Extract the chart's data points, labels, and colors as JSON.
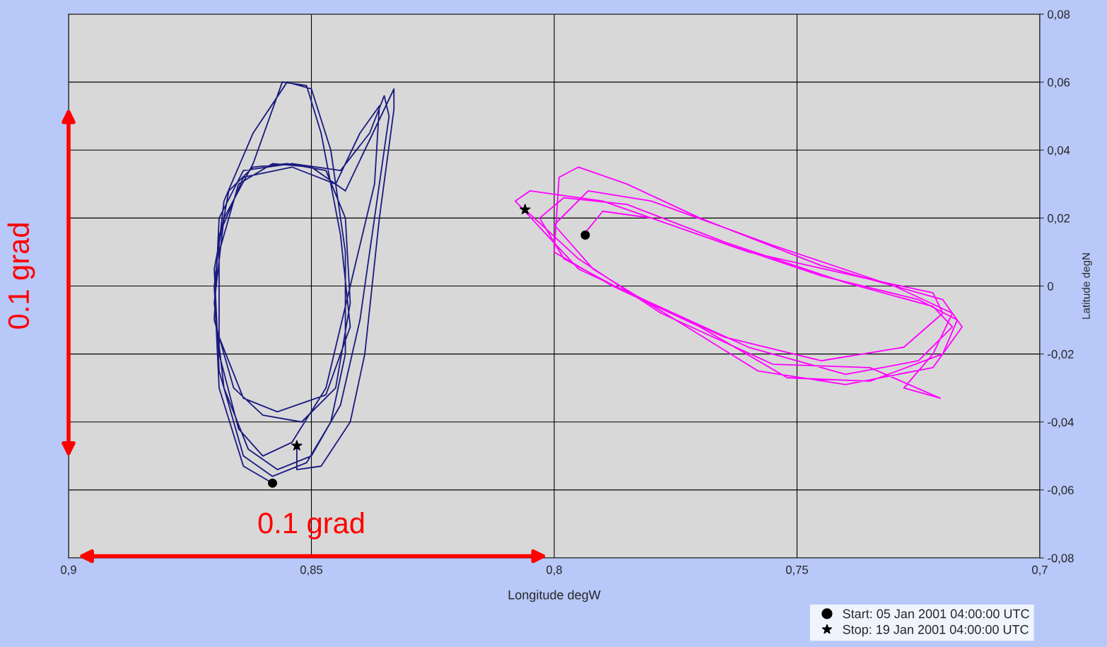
{
  "chart_data": {
    "type": "line",
    "xlabel": "Longitude degW",
    "ylabel": "Latitude degN",
    "xlim": [
      0.9,
      0.7
    ],
    "xticks": [
      {
        "value": 0.9,
        "label": "0,9"
      },
      {
        "value": 0.85,
        "label": "0,85"
      },
      {
        "value": 0.8,
        "label": "0,8"
      },
      {
        "value": 0.75,
        "label": "0,75"
      },
      {
        "value": 0.7,
        "label": "0,7"
      }
    ],
    "ylim": [
      -0.08,
      0.08
    ],
    "yticks": [
      {
        "value": -0.08,
        "label": "-0,08"
      },
      {
        "value": -0.06,
        "label": "-0,06"
      },
      {
        "value": -0.04,
        "label": "-0,04"
      },
      {
        "value": -0.02,
        "label": "-0,02"
      },
      0,
      {
        "value": 0.02,
        "label": "0,02"
      },
      {
        "value": 0.04,
        "label": "0,04"
      },
      {
        "value": 0.06,
        "label": "0,06"
      },
      {
        "value": 0.08,
        "label": "0,08"
      }
    ],
    "grid": true,
    "legend": "bottom right",
    "annotations": [
      "0.1 grad",
      "0.1 grad"
    ],
    "series": [
      {
        "color": "#1a1a80",
        "marker": "none",
        "x": [
          0.858,
          0.864,
          0.869,
          0.87,
          0.868,
          0.862,
          0.855,
          0.85,
          0.846,
          0.843,
          0.843,
          0.846,
          0.851,
          0.858,
          0.864,
          0.869,
          0.87,
          0.867,
          0.862,
          0.855,
          0.847,
          0.843,
          0.842,
          0.845,
          0.852,
          0.86,
          0.866,
          0.87,
          0.869,
          0.864,
          0.854,
          0.844,
          0.838,
          0.835,
          0.834,
          0.837,
          0.84,
          0.844,
          0.85,
          0.857,
          0.863,
          0.868,
          0.87,
          0.868,
          0.862,
          0.856,
          0.851,
          0.848,
          0.844,
          0.842,
          0.847,
          0.857,
          0.864,
          0.869,
          0.869,
          0.864,
          0.854,
          0.845,
          0.84,
          0.836,
          0.837,
          0.842,
          0.847,
          0.854,
          0.86,
          0.865,
          0.869,
          0.869,
          0.865,
          0.858,
          0.85,
          0.843,
          0.839,
          0.833,
          0.833,
          0.836,
          0.839,
          0.842,
          0.848,
          0.853,
          0.853
        ],
        "values": [
          -0.058,
          -0.053,
          -0.03,
          0.0,
          0.025,
          0.045,
          0.06,
          0.058,
          0.04,
          0.01,
          -0.02,
          -0.04,
          -0.052,
          -0.056,
          -0.05,
          -0.025,
          0.005,
          0.028,
          0.035,
          0.036,
          0.034,
          0.02,
          -0.005,
          -0.03,
          -0.04,
          -0.038,
          -0.03,
          -0.01,
          0.02,
          0.034,
          0.036,
          0.034,
          0.045,
          0.056,
          0.05,
          0.02,
          -0.01,
          -0.035,
          -0.05,
          -0.054,
          -0.048,
          -0.03,
          -0.005,
          0.02,
          0.036,
          0.06,
          0.059,
          0.045,
          0.015,
          -0.012,
          -0.032,
          -0.037,
          -0.033,
          -0.015,
          0.015,
          0.032,
          0.035,
          0.03,
          0.045,
          0.053,
          0.03,
          0.0,
          -0.03,
          -0.046,
          -0.05,
          -0.042,
          -0.02,
          0.01,
          0.03,
          0.036,
          0.035,
          0.028,
          0.04,
          0.058,
          0.052,
          0.02,
          -0.02,
          -0.04,
          -0.053,
          -0.054,
          -0.047
        ]
      },
      {
        "color": "#ff00ff",
        "marker": "none",
        "x": [
          0.794,
          0.79,
          0.78,
          0.76,
          0.735,
          0.722,
          0.72,
          0.728,
          0.745,
          0.765,
          0.785,
          0.798,
          0.803,
          0.798,
          0.785,
          0.765,
          0.74,
          0.722,
          0.718,
          0.725,
          0.74,
          0.76,
          0.78,
          0.795,
          0.808,
          0.805,
          0.79,
          0.77,
          0.745,
          0.725,
          0.717,
          0.72,
          0.735,
          0.752,
          0.77,
          0.788,
          0.8,
          0.799,
          0.795,
          0.785,
          0.77,
          0.745,
          0.72,
          0.716,
          0.722,
          0.74,
          0.758,
          0.775,
          0.792,
          0.8,
          0.793,
          0.78,
          0.755,
          0.73,
          0.718,
          0.722,
          0.728,
          0.7205,
          0.735,
          0.755,
          0.778,
          0.795,
          0.806
        ],
        "values": [
          0.015,
          0.022,
          0.02,
          0.01,
          0.002,
          -0.002,
          -0.008,
          -0.018,
          -0.022,
          -0.015,
          -0.002,
          0.008,
          0.02,
          0.026,
          0.024,
          0.013,
          0.001,
          -0.006,
          -0.012,
          -0.022,
          -0.026,
          -0.018,
          -0.005,
          0.005,
          0.025,
          0.028,
          0.025,
          0.015,
          0.003,
          -0.004,
          -0.01,
          -0.02,
          -0.028,
          -0.027,
          -0.012,
          0.0,
          0.01,
          0.032,
          0.035,
          0.03,
          0.02,
          0.006,
          -0.004,
          -0.012,
          -0.024,
          -0.029,
          -0.025,
          -0.01,
          0.005,
          0.018,
          0.028,
          0.025,
          0.012,
          0.0,
          -0.008,
          -0.02,
          -0.03,
          -0.033,
          -0.024,
          -0.023,
          -0.008,
          0.008,
          0.0225
        ]
      },
      {
        "type": "scatter",
        "name": "Start: 05 Jan 2001 04:00:00 UTC",
        "color": "#000000",
        "marker": "circle",
        "x": [
          0.858,
          0.7936
        ],
        "values": [
          -0.058,
          0.015
        ]
      },
      {
        "type": "scatter",
        "name": "Stop: 19 Jan 2001 04:00:00 UTC",
        "color": "#000000",
        "marker": "star",
        "x": [
          0.853,
          0.806
        ],
        "values": [
          -0.047,
          0.0225
        ]
      }
    ]
  }
}
